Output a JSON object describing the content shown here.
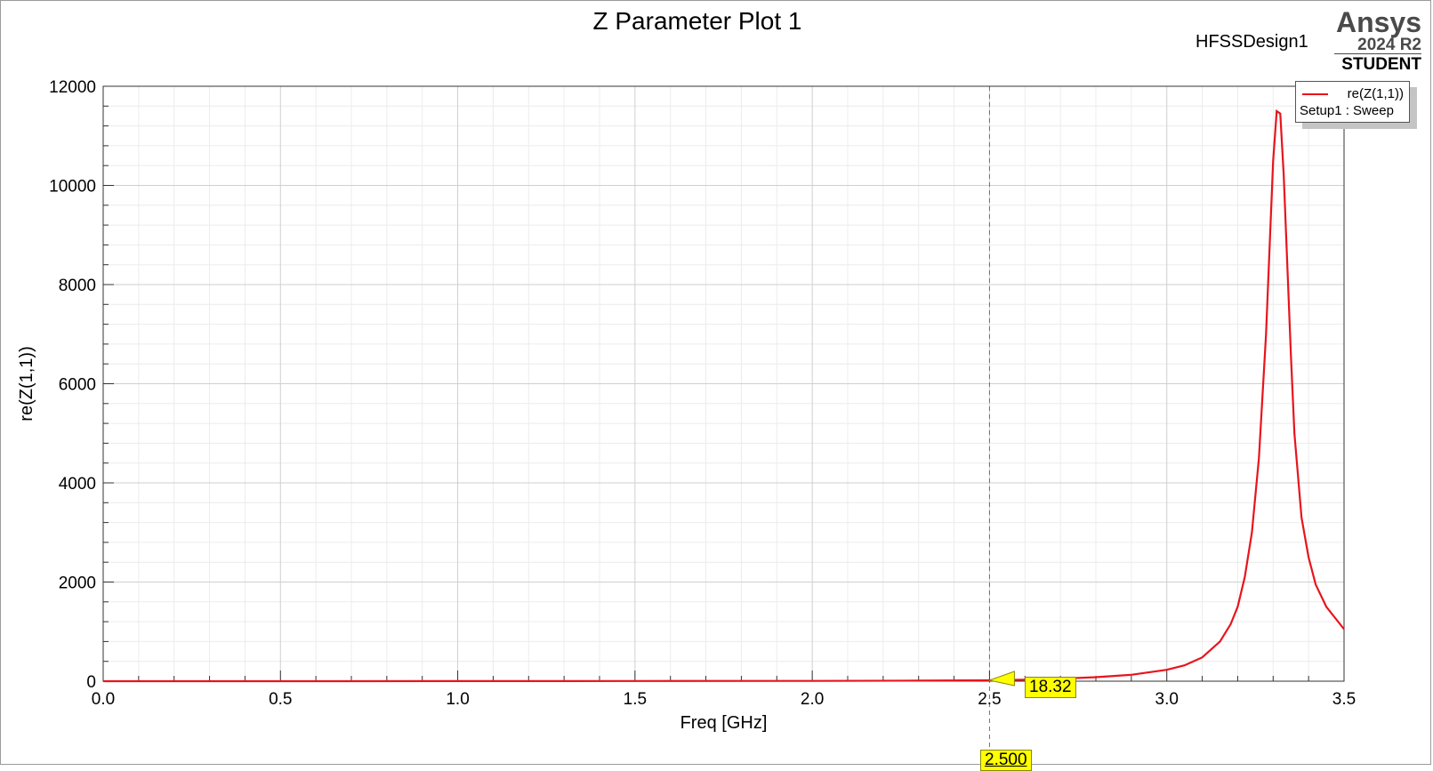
{
  "chart_data": {
    "type": "line",
    "title": "Z Parameter Plot 1",
    "design": "HFSSDesign1",
    "brand": {
      "name": "Ansys",
      "version": "2024 R2",
      "edition": "STUDENT"
    },
    "xlabel": "Freq [GHz]",
    "ylabel": "re(Z(1,1))",
    "xlim": [
      0,
      3.5
    ],
    "ylim": [
      0,
      12000
    ],
    "x_ticks": [
      "0.0",
      "0.5",
      "1.0",
      "1.5",
      "2.0",
      "2.5",
      "3.0",
      "3.5"
    ],
    "y_ticks": [
      "0",
      "2000",
      "4000",
      "6000",
      "8000",
      "10000",
      "12000"
    ],
    "grid": true,
    "legend": {
      "placement": "top-right",
      "series": "re(Z(1,1))",
      "source": "Setup1 : Sweep"
    },
    "series": [
      {
        "name": "re(Z(1,1))",
        "color": "#e8141c",
        "x": [
          0,
          0.5,
          1.0,
          1.5,
          2.0,
          2.3,
          2.5,
          2.6,
          2.7,
          2.8,
          2.9,
          3.0,
          3.05,
          3.1,
          3.15,
          3.18,
          3.2,
          3.22,
          3.24,
          3.26,
          3.28,
          3.3,
          3.31,
          3.32,
          3.33,
          3.34,
          3.35,
          3.36,
          3.38,
          3.4,
          3.42,
          3.45,
          3.5
        ],
        "y": [
          0,
          0.5,
          1.5,
          3,
          6,
          10,
          18.32,
          30,
          50,
          80,
          130,
          230,
          320,
          480,
          800,
          1150,
          1500,
          2100,
          3000,
          4500,
          7000,
          10500,
          11500,
          11450,
          10200,
          8400,
          6600,
          5000,
          3300,
          2500,
          1950,
          1500,
          1050
        ]
      }
    ],
    "markers": {
      "x_value": "2.500",
      "y_value": "18.32"
    }
  }
}
